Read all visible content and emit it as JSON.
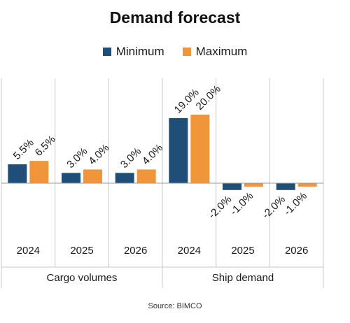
{
  "chart_data": {
    "type": "bar",
    "title": "Demand forecast",
    "source": "Source: BIMCO",
    "groups": [
      "Cargo volumes",
      "Ship demand"
    ],
    "categories": [
      "2024",
      "2025",
      "2026",
      "2024",
      "2025",
      "2026"
    ],
    "category_groups": [
      0,
      0,
      0,
      1,
      1,
      1
    ],
    "series": [
      {
        "name": "Minimum",
        "color": "#1f4e79",
        "values": [
          5.5,
          3.0,
          3.0,
          19.0,
          -2.0,
          -2.0
        ],
        "labels": [
          "5.5%",
          "3.0%",
          "3.0%",
          "19.0%",
          "-2.0%",
          "-2.0%"
        ]
      },
      {
        "name": "Maximum",
        "color": "#f0953a",
        "values": [
          6.5,
          4.0,
          4.0,
          20.0,
          -1.0,
          -1.0
        ],
        "labels": [
          "6.5%",
          "4.0%",
          "4.0%",
          "20.0%",
          "-1.0%",
          "-1.0%"
        ]
      }
    ],
    "ylim": [
      -2.5,
      21
    ],
    "legend": "top-center",
    "grid": false
  }
}
